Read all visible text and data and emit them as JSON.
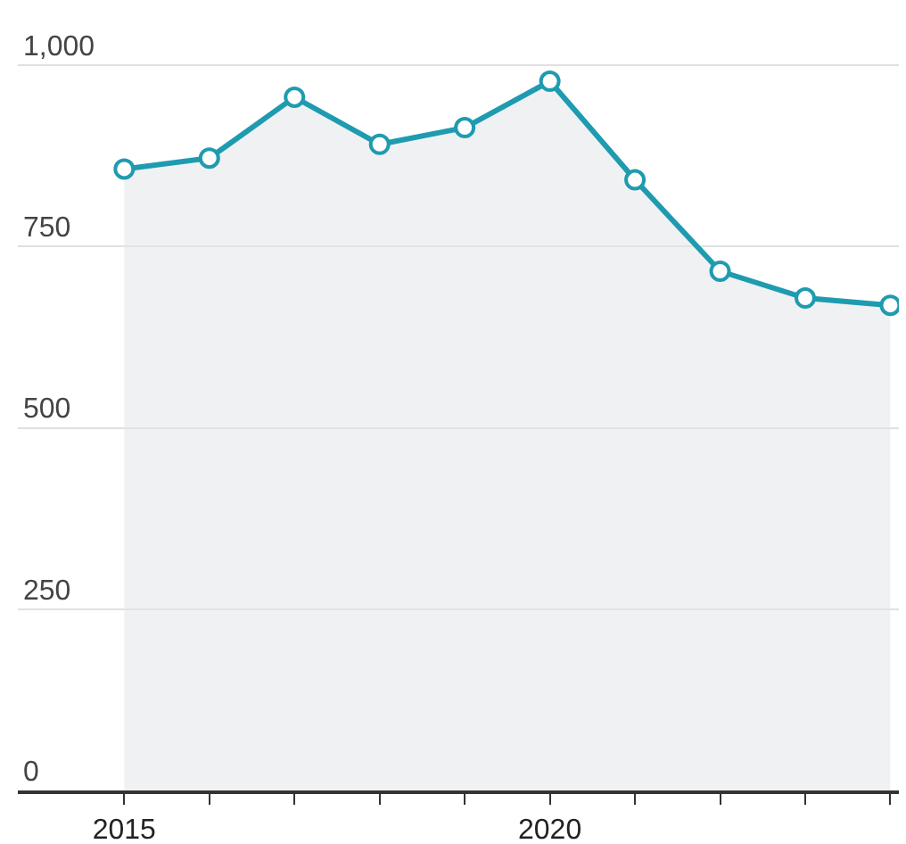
{
  "chart_data": {
    "type": "area",
    "x": [
      2015,
      2016,
      2017,
      2018,
      2019,
      2020,
      2021,
      2022,
      2023,
      2024
    ],
    "series": [
      {
        "color": "#1f9bb0",
        "values": [
          857,
          872,
          956,
          891,
          914,
          978,
          842,
          716,
          679,
          669
        ]
      }
    ],
    "xlim": [
      2013.75,
      2024.1
    ],
    "xticks": [
      2015,
      {
        "value": 2016,
        "label": null
      },
      {
        "value": 2017,
        "label": null
      },
      {
        "value": 2018,
        "label": null
      },
      {
        "value": 2019,
        "label": null
      },
      2020,
      {
        "value": 2021,
        "label": null
      },
      {
        "value": 2022,
        "label": null
      },
      {
        "value": 2023,
        "label": null
      },
      {
        "value": 2024,
        "label": null
      }
    ],
    "ylim": [
      0,
      1090
    ],
    "yticks": [
      0,
      250,
      500,
      750,
      {
        "value": 1000,
        "label": "1,000"
      }
    ],
    "grid": "y",
    "marker": "circle",
    "line_style": "solid",
    "legend": false
  }
}
